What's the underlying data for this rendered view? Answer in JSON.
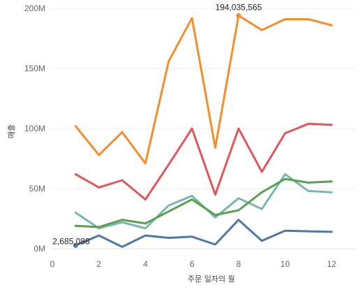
{
  "chart_data": {
    "type": "line",
    "title": "",
    "xlabel": "주문 일자의 월",
    "ylabel": "매출",
    "xlim": [
      0,
      13
    ],
    "ylim": [
      0,
      200000000
    ],
    "x": [
      1,
      2,
      3,
      4,
      5,
      6,
      7,
      8,
      9,
      10,
      11,
      12
    ],
    "xticks": [
      0,
      2,
      4,
      6,
      8,
      10,
      12
    ],
    "yticks": [
      {
        "value": 0,
        "label": "0M"
      },
      {
        "value": 50000000,
        "label": "50M"
      },
      {
        "value": 100000000,
        "label": "100M"
      },
      {
        "value": 150000000,
        "label": "150M"
      },
      {
        "value": 200000000,
        "label": "200M"
      }
    ],
    "series": [
      {
        "name": "orange",
        "color": "#f28e2b",
        "values": [
          102000000,
          78000000,
          97000000,
          71000000,
          156000000,
          192000000,
          84000000,
          194035565,
          182000000,
          191000000,
          191000000,
          186000000
        ]
      },
      {
        "name": "red",
        "color": "#e15759",
        "values": [
          62000000,
          51000000,
          57000000,
          41000000,
          70000000,
          100000000,
          45000000,
          100000000,
          64000000,
          96000000,
          104000000,
          103000000
        ]
      },
      {
        "name": "teal",
        "color": "#76b7b2",
        "values": [
          30000000,
          17000000,
          22000000,
          17000000,
          36000000,
          44000000,
          26000000,
          42000000,
          33000000,
          62000000,
          48000000,
          47000000
        ]
      },
      {
        "name": "green",
        "color": "#59a14f",
        "values": [
          19000000,
          18000000,
          24000000,
          21000000,
          31000000,
          41000000,
          28000000,
          32000000,
          47000000,
          58000000,
          55000000,
          56000000
        ]
      },
      {
        "name": "blue",
        "color": "#4e79a7",
        "values": [
          2685088,
          11000000,
          1500000,
          11000000,
          9000000,
          10000000,
          3500000,
          24000000,
          6500000,
          15000000,
          14500000,
          14000000
        ]
      }
    ],
    "annotations": [
      {
        "text": "194,035,565",
        "series": 0,
        "index": 7,
        "position": "above"
      },
      {
        "text": "2,685,088",
        "series": 4,
        "index": 0,
        "position": "right"
      }
    ]
  }
}
